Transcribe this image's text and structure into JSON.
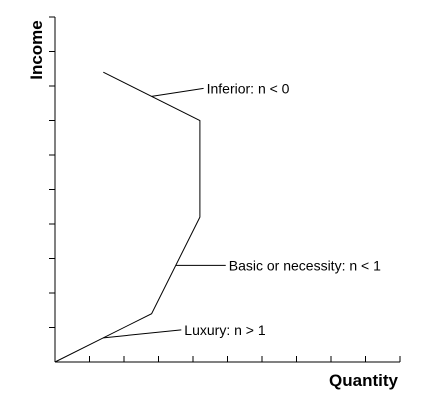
{
  "chart_data": {
    "type": "line",
    "title": "",
    "xlabel": "Quantity",
    "ylabel": "Income",
    "xlim": [
      0,
      10
    ],
    "ylim": [
      0,
      10
    ],
    "x_tick_count": 10,
    "y_tick_count": 10,
    "tick_labels_shown": false,
    "grid": false,
    "legend": "none",
    "series": [
      {
        "points": [
          {
            "x": 0.0,
            "y": 0.0
          },
          {
            "x": 2.8,
            "y": 1.4
          },
          {
            "x": 4.2,
            "y": 4.2
          },
          {
            "x": 4.2,
            "y": 7.0
          },
          {
            "x": 1.4,
            "y": 8.4
          }
        ]
      }
    ],
    "annotations": [
      {
        "text": "Inferior: n < 0",
        "anchor": {
          "x": 2.8,
          "y": 7.7
        }
      },
      {
        "text": "Basic or necessity: n < 1",
        "anchor": {
          "x": 3.5,
          "y": 2.8
        }
      },
      {
        "text": "Luxury: n > 1",
        "anchor": {
          "x": 1.4,
          "y": 0.7
        }
      }
    ]
  }
}
